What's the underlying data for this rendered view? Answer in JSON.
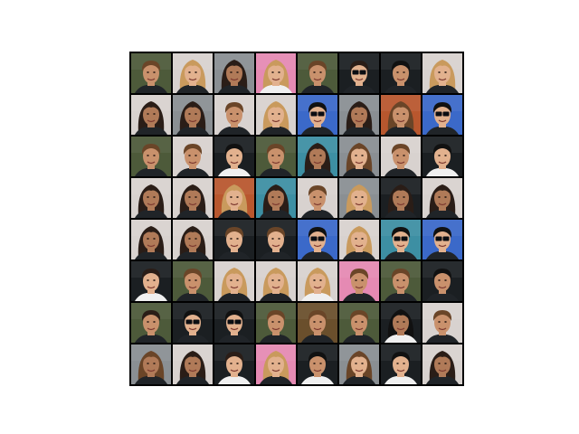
{
  "figure": {
    "description_visible_text": "",
    "grid": {
      "rows": 8,
      "cols": 8
    }
  },
  "palette": {
    "bg_dark": "#1b1f22",
    "bg_green": "#4d5a3a",
    "bg_light": "#d8d2cf",
    "bg_pink": "#e58ab3",
    "bg_teal": "#3d8fa3",
    "bg_blue": "#3b69c9",
    "bg_orange": "#b8572e",
    "bg_brown": "#6a4f2c",
    "bg_grey": "#8a8f93",
    "skin_light": "#e2b18e",
    "skin_mid": "#c9916c",
    "skin_tan": "#b07a58",
    "hair_dark": "#2a1d17",
    "hair_brown": "#6a4528",
    "hair_blonde": "#c99a5d",
    "hair_black": "#111111",
    "shirt_white": "#f0f0f0",
    "shirt_dark": "#202428",
    "glasses": "#0b0d12"
  },
  "tiles": [
    {
      "bg": "bg_green",
      "skin": "skin_mid",
      "hair": "hair_brown",
      "style": "short",
      "top": "shirt_dark"
    },
    {
      "bg": "bg_light",
      "skin": "skin_light",
      "hair": "hair_blonde",
      "style": "long",
      "top": "shirt_dark"
    },
    {
      "bg": "bg_grey",
      "skin": "skin_tan",
      "hair": "hair_dark",
      "style": "long",
      "top": "shirt_dark"
    },
    {
      "bg": "bg_pink",
      "skin": "skin_light",
      "hair": "hair_blonde",
      "style": "long",
      "top": "shirt_white"
    },
    {
      "bg": "bg_green",
      "skin": "skin_mid",
      "hair": "hair_brown",
      "style": "short",
      "top": "shirt_dark"
    },
    {
      "bg": "bg_dark",
      "skin": "skin_light",
      "hair": "hair_dark",
      "style": "short",
      "top": "shirt_dark",
      "glasses": true
    },
    {
      "bg": "bg_dark",
      "skin": "skin_mid",
      "hair": "hair_black",
      "style": "short",
      "top": "shirt_dark"
    },
    {
      "bg": "bg_light",
      "skin": "skin_light",
      "hair": "hair_blonde",
      "style": "long",
      "top": "shirt_dark"
    },
    {
      "bg": "bg_light",
      "skin": "skin_tan",
      "hair": "hair_dark",
      "style": "long",
      "top": "shirt_dark"
    },
    {
      "bg": "bg_grey",
      "skin": "skin_tan",
      "hair": "hair_dark",
      "style": "long",
      "top": "shirt_dark"
    },
    {
      "bg": "bg_light",
      "skin": "skin_mid",
      "hair": "hair_brown",
      "style": "short",
      "top": "shirt_dark"
    },
    {
      "bg": "bg_light",
      "skin": "skin_light",
      "hair": "hair_blonde",
      "style": "long",
      "top": "shirt_dark"
    },
    {
      "bg": "bg_blue",
      "skin": "skin_light",
      "hair": "hair_black",
      "style": "short",
      "top": "shirt_dark",
      "glasses": true
    },
    {
      "bg": "bg_grey",
      "skin": "skin_tan",
      "hair": "hair_dark",
      "style": "long",
      "top": "shirt_dark"
    },
    {
      "bg": "bg_orange",
      "skin": "skin_mid",
      "hair": "hair_brown",
      "style": "long",
      "top": "shirt_dark"
    },
    {
      "bg": "bg_blue",
      "skin": "skin_light",
      "hair": "hair_black",
      "style": "short",
      "top": "shirt_dark",
      "glasses": true
    },
    {
      "bg": "bg_green",
      "skin": "skin_mid",
      "hair": "hair_brown",
      "style": "short",
      "top": "shirt_dark"
    },
    {
      "bg": "bg_light",
      "skin": "skin_mid",
      "hair": "hair_brown",
      "style": "short",
      "top": "shirt_dark"
    },
    {
      "bg": "bg_dark",
      "skin": "skin_light",
      "hair": "hair_black",
      "style": "short",
      "top": "shirt_white"
    },
    {
      "bg": "bg_green",
      "skin": "skin_mid",
      "hair": "hair_brown",
      "style": "short",
      "top": "shirt_dark"
    },
    {
      "bg": "bg_teal",
      "skin": "skin_tan",
      "hair": "hair_dark",
      "style": "long",
      "top": "shirt_dark"
    },
    {
      "bg": "bg_grey",
      "skin": "skin_light",
      "hair": "hair_brown",
      "style": "long",
      "top": "shirt_dark"
    },
    {
      "bg": "bg_light",
      "skin": "skin_mid",
      "hair": "hair_brown",
      "style": "short",
      "top": "shirt_dark"
    },
    {
      "bg": "bg_dark",
      "skin": "skin_light",
      "hair": "hair_black",
      "style": "short",
      "top": "shirt_white"
    },
    {
      "bg": "bg_light",
      "skin": "skin_tan",
      "hair": "hair_dark",
      "style": "long",
      "top": "shirt_dark"
    },
    {
      "bg": "bg_light",
      "skin": "skin_tan",
      "hair": "hair_dark",
      "style": "long",
      "top": "shirt_dark"
    },
    {
      "bg": "bg_orange",
      "skin": "skin_light",
      "hair": "hair_blonde",
      "style": "long",
      "top": "shirt_dark"
    },
    {
      "bg": "bg_teal",
      "skin": "skin_tan",
      "hair": "hair_dark",
      "style": "long",
      "top": "shirt_dark"
    },
    {
      "bg": "bg_light",
      "skin": "skin_mid",
      "hair": "hair_brown",
      "style": "short",
      "top": "shirt_dark"
    },
    {
      "bg": "bg_grey",
      "skin": "skin_light",
      "hair": "hair_blonde",
      "style": "long",
      "top": "shirt_dark"
    },
    {
      "bg": "bg_dark",
      "skin": "skin_tan",
      "hair": "hair_dark",
      "style": "long",
      "top": "shirt_dark"
    },
    {
      "bg": "bg_light",
      "skin": "skin_tan",
      "hair": "hair_dark",
      "style": "long",
      "top": "shirt_dark"
    },
    {
      "bg": "bg_light",
      "skin": "skin_tan",
      "hair": "hair_dark",
      "style": "long",
      "top": "shirt_dark"
    },
    {
      "bg": "bg_light",
      "skin": "skin_tan",
      "hair": "hair_dark",
      "style": "long",
      "top": "shirt_dark"
    },
    {
      "bg": "bg_dark",
      "skin": "skin_light",
      "hair": "hair_brown",
      "style": "short",
      "top": "shirt_dark"
    },
    {
      "bg": "bg_dark",
      "skin": "skin_light",
      "hair": "hair_brown",
      "style": "short",
      "top": "shirt_dark"
    },
    {
      "bg": "bg_blue",
      "skin": "skin_light",
      "hair": "hair_black",
      "style": "short",
      "top": "shirt_dark",
      "glasses": true
    },
    {
      "bg": "bg_light",
      "skin": "skin_light",
      "hair": "hair_blonde",
      "style": "long",
      "top": "shirt_dark"
    },
    {
      "bg": "bg_teal",
      "skin": "skin_light",
      "hair": "hair_black",
      "style": "short",
      "top": "shirt_dark",
      "glasses": true
    },
    {
      "bg": "bg_blue",
      "skin": "skin_light",
      "hair": "hair_black",
      "style": "short",
      "top": "shirt_dark",
      "glasses": true
    },
    {
      "bg": "bg_dark",
      "skin": "skin_light",
      "hair": "hair_dark",
      "style": "short",
      "top": "shirt_white"
    },
    {
      "bg": "bg_green",
      "skin": "skin_mid",
      "hair": "hair_brown",
      "style": "short",
      "top": "shirt_dark"
    },
    {
      "bg": "bg_light",
      "skin": "skin_light",
      "hair": "hair_blonde",
      "style": "long",
      "top": "shirt_dark"
    },
    {
      "bg": "bg_light",
      "skin": "skin_light",
      "hair": "hair_blonde",
      "style": "long",
      "top": "shirt_dark"
    },
    {
      "bg": "bg_light",
      "skin": "skin_light",
      "hair": "hair_blonde",
      "style": "long",
      "top": "shirt_white"
    },
    {
      "bg": "bg_pink",
      "skin": "skin_mid",
      "hair": "hair_brown",
      "style": "short",
      "top": "shirt_dark"
    },
    {
      "bg": "bg_green",
      "skin": "skin_mid",
      "hair": "hair_brown",
      "style": "short",
      "top": "shirt_dark"
    },
    {
      "bg": "bg_dark",
      "skin": "skin_mid",
      "hair": "hair_black",
      "style": "short",
      "top": "shirt_dark"
    },
    {
      "bg": "bg_green",
      "skin": "skin_mid",
      "hair": "hair_dark",
      "style": "short",
      "top": "shirt_dark"
    },
    {
      "bg": "bg_dark",
      "skin": "skin_light",
      "hair": "hair_black",
      "style": "short",
      "top": "shirt_dark",
      "glasses": true
    },
    {
      "bg": "bg_dark",
      "skin": "skin_light",
      "hair": "hair_black",
      "style": "short",
      "top": "shirt_dark",
      "glasses": true
    },
    {
      "bg": "bg_green",
      "skin": "skin_mid",
      "hair": "hair_brown",
      "style": "short",
      "top": "shirt_dark"
    },
    {
      "bg": "bg_brown",
      "skin": "skin_mid",
      "hair": "hair_brown",
      "style": "short",
      "top": "shirt_dark"
    },
    {
      "bg": "bg_green",
      "skin": "skin_mid",
      "hair": "hair_brown",
      "style": "short",
      "top": "shirt_dark"
    },
    {
      "bg": "bg_dark",
      "skin": "skin_tan",
      "hair": "hair_black",
      "style": "long",
      "top": "shirt_white"
    },
    {
      "bg": "bg_light",
      "skin": "skin_mid",
      "hair": "hair_brown",
      "style": "short",
      "top": "shirt_dark"
    },
    {
      "bg": "bg_grey",
      "skin": "skin_tan",
      "hair": "hair_brown",
      "style": "long",
      "top": "shirt_dark"
    },
    {
      "bg": "bg_light",
      "skin": "skin_tan",
      "hair": "hair_dark",
      "style": "long",
      "top": "shirt_dark"
    },
    {
      "bg": "bg_dark",
      "skin": "skin_light",
      "hair": "hair_dark",
      "style": "short",
      "top": "shirt_white"
    },
    {
      "bg": "bg_pink",
      "skin": "skin_light",
      "hair": "hair_blonde",
      "style": "long",
      "top": "shirt_dark"
    },
    {
      "bg": "bg_dark",
      "skin": "skin_mid",
      "hair": "hair_black",
      "style": "short",
      "top": "shirt_white"
    },
    {
      "bg": "bg_grey",
      "skin": "skin_light",
      "hair": "hair_brown",
      "style": "long",
      "top": "shirt_dark"
    },
    {
      "bg": "bg_dark",
      "skin": "skin_light",
      "hair": "hair_black",
      "style": "short",
      "top": "shirt_white"
    },
    {
      "bg": "bg_light",
      "skin": "skin_tan",
      "hair": "hair_dark",
      "style": "long",
      "top": "shirt_dark"
    }
  ]
}
